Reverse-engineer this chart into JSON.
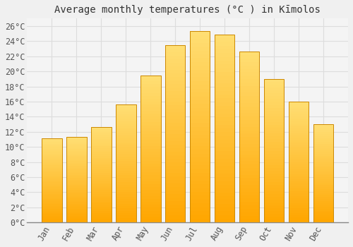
{
  "title": "Average monthly temperatures (°C ) in Kīmolos",
  "months": [
    "Jan",
    "Feb",
    "Mar",
    "Apr",
    "May",
    "Jun",
    "Jul",
    "Aug",
    "Sep",
    "Oct",
    "Nov",
    "Dec"
  ],
  "temperatures": [
    11.1,
    11.3,
    12.6,
    15.6,
    19.5,
    23.5,
    25.3,
    24.9,
    22.6,
    19.0,
    16.0,
    13.0
  ],
  "bar_color_bottom": "#FFA500",
  "bar_color_top": "#FFD966",
  "bar_edge_color": "#CC8800",
  "background_color": "#F0F0F0",
  "plot_bg_color": "#F4F4F4",
  "grid_color": "#DDDDDD",
  "ylim": [
    0,
    27
  ],
  "ytick_step": 2,
  "title_fontsize": 10,
  "tick_fontsize": 8.5,
  "font_family": "monospace"
}
